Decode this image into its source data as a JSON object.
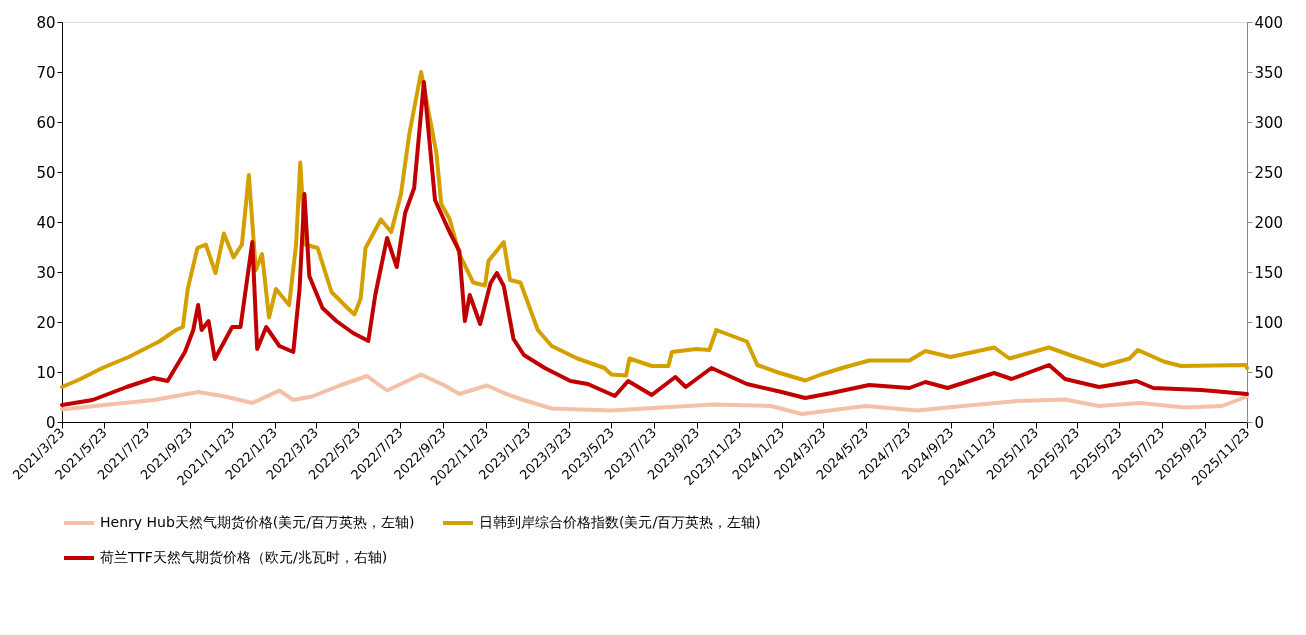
{
  "chart_data": {
    "type": "line",
    "legend": "bottom",
    "line_style": "solid",
    "xlim": [
      "2021-03-23",
      "2025-11-23"
    ],
    "xticks": [
      {
        "value": "2021-03-23",
        "label": "2021/3/23"
      },
      {
        "value": "2021-05-23",
        "label": "2021/5/23"
      },
      {
        "value": "2021-07-23",
        "label": "2021/7/23"
      },
      {
        "value": "2021-09-23",
        "label": "2021/9/23"
      },
      {
        "value": "2021-11-23",
        "label": "2021/11/23"
      },
      {
        "value": "2022-01-23",
        "label": "2022/1/23"
      },
      {
        "value": "2022-03-23",
        "label": "2022/3/23"
      },
      {
        "value": "2022-05-23",
        "label": "2022/5/23"
      },
      {
        "value": "2022-07-23",
        "label": "2022/7/23"
      },
      {
        "value": "2022-09-23",
        "label": "2022/9/23"
      },
      {
        "value": "2022-11-23",
        "label": "2022/11/23"
      },
      {
        "value": "2023-01-23",
        "label": "2023/1/23"
      },
      {
        "value": "2023-03-23",
        "label": "2023/3/23"
      },
      {
        "value": "2023-05-23",
        "label": "2023/5/23"
      },
      {
        "value": "2023-07-23",
        "label": "2023/7/23"
      },
      {
        "value": "2023-09-23",
        "label": "2023/9/23"
      },
      {
        "value": "2023-11-23",
        "label": "2023/11/23"
      },
      {
        "value": "2024-01-23",
        "label": "2024/1/23"
      },
      {
        "value": "2024-03-23",
        "label": "2024/3/23"
      },
      {
        "value": "2024-05-23",
        "label": "2024/5/23"
      },
      {
        "value": "2024-07-23",
        "label": "2024/7/23"
      },
      {
        "value": "2024-09-23",
        "label": "2024/9/23"
      },
      {
        "value": "2024-11-23",
        "label": "2024/11/23"
      },
      {
        "value": "2025-01-23",
        "label": "2025/1/23"
      },
      {
        "value": "2025-03-23",
        "label": "2025/3/23"
      },
      {
        "value": "2025-05-23",
        "label": "2025/5/23"
      },
      {
        "value": "2025-07-23",
        "label": "2025/7/23"
      },
      {
        "value": "2025-09-23",
        "label": "2025/9/23"
      },
      {
        "value": "2025-11-23",
        "label": "2025/11/23"
      }
    ],
    "ylim": [
      0,
      80
    ],
    "yticks": [
      0,
      10,
      20,
      30,
      40,
      50,
      60,
      70,
      80
    ],
    "y2lim": [
      0,
      400
    ],
    "y2ticks": [
      0,
      50,
      100,
      150,
      200,
      250,
      300,
      350,
      400
    ],
    "series": [
      {
        "name": "Henry Hub天然气期货价格(美元/百万英热，左轴)",
        "color": "#f4c0a8",
        "x": [
          "2021-03-23",
          "2021-05-30",
          "2021-08-02",
          "2021-10-05",
          "2021-11-13",
          "2021-12-22",
          "2022-01-30",
          "2022-02-19",
          "2022-03-18",
          "2022-04-27",
          "2022-06-05",
          "2022-07-04",
          "2022-08-22",
          "2022-09-25",
          "2022-10-16",
          "2022-11-25",
          "2022-12-19",
          "2023-01-12",
          "2023-02-26",
          "2023-05-23",
          "2023-10-16",
          "2024-01-08",
          "2024-02-21",
          "2024-05-23",
          "2024-08-05",
          "2024-10-10",
          "2024-12-28",
          "2025-03-06",
          "2025-04-24",
          "2025-06-22",
          "2025-08-25",
          "2025-10-18",
          "2025-11-23"
        ],
        "values": [
          2.5,
          3.5,
          4.4,
          6.0,
          5.1,
          3.8,
          6.3,
          4.4,
          5.1,
          7.3,
          9.2,
          6.3,
          9.5,
          7.3,
          5.6,
          7.3,
          5.8,
          4.6,
          2.7,
          2.3,
          3.5,
          3.2,
          1.6,
          3.2,
          2.3,
          3.2,
          4.2,
          4.5,
          3.2,
          3.8,
          2.9,
          3.2,
          5.1
        ]
      },
      {
        "name": "日韩到岸综合价格指数(美元/百万英热，左轴)",
        "color": "#d4a000",
        "x": [
          "2021-03-23",
          "2021-04-17",
          "2021-05-20",
          "2021-06-27",
          "2021-08-10",
          "2021-09-03",
          "2021-09-13",
          "2021-09-20",
          "2021-10-04",
          "2021-10-16",
          "2021-10-30",
          "2021-11-11",
          "2021-11-25",
          "2021-12-07",
          "2021-12-17",
          "2021-12-27",
          "2022-01-05",
          "2022-01-15",
          "2022-01-25",
          "2022-02-13",
          "2022-02-23",
          "2022-03-01",
          "2022-03-08",
          "2022-03-26",
          "2022-04-15",
          "2022-05-08",
          "2022-05-18",
          "2022-05-27",
          "2022-06-03",
          "2022-06-25",
          "2022-07-10",
          "2022-07-24",
          "2022-08-05",
          "2022-08-22",
          "2022-09-13",
          "2022-09-20",
          "2022-10-02",
          "2022-10-16",
          "2022-11-05",
          "2022-11-22",
          "2022-11-27",
          "2022-12-19",
          "2022-12-28",
          "2023-01-12",
          "2023-02-06",
          "2023-02-26",
          "2023-04-04",
          "2023-05-13",
          "2023-05-23",
          "2023-06-13",
          "2023-06-18",
          "2023-07-20",
          "2023-08-13",
          "2023-08-18",
          "2023-09-22",
          "2023-10-11",
          "2023-10-21",
          "2023-12-04",
          "2023-12-19",
          "2024-01-18",
          "2024-02-26",
          "2024-03-20",
          "2024-04-19",
          "2024-05-28",
          "2024-07-25",
          "2024-08-17",
          "2024-09-22",
          "2024-11-24",
          "2024-12-16",
          "2025-02-11",
          "2025-03-15",
          "2025-04-29",
          "2025-06-07",
          "2025-06-19",
          "2025-07-26",
          "2025-08-20",
          "2025-11-21",
          "2025-11-23"
        ],
        "values": [
          7.0,
          8.5,
          10.8,
          13,
          16.1,
          18.4,
          19,
          26.6,
          34.8,
          35.5,
          29.8,
          37.7,
          32.9,
          35.5,
          49.4,
          30.4,
          33.6,
          20.9,
          26.6,
          23.4,
          35.5,
          51.9,
          35.5,
          34.8,
          26,
          22.8,
          21.5,
          24.7,
          34.8,
          40.5,
          38,
          45.6,
          57.6,
          70,
          53.8,
          43.6,
          40.6,
          33.6,
          27.9,
          27.3,
          32.2,
          36,
          28.4,
          27.9,
          18.4,
          15.2,
          12.7,
          10.8,
          9.5,
          9.3,
          12.7,
          11.2,
          11.2,
          14,
          14.6,
          14.4,
          18.4,
          16.1,
          11.4,
          9.9,
          8.3,
          9.5,
          10.8,
          12.3,
          12.3,
          14.2,
          13,
          14.9,
          12.7,
          14.9,
          13.3,
          11.2,
          12.7,
          14.4,
          12.1,
          11.2,
          11.4,
          10.8
        ]
      },
      {
        "name": "荷兰TTF天然气期货价格（欧元/兆瓦时，右轴)",
        "color": "#c00000",
        "axis": "y2",
        "x": [
          "2021-03-23",
          "2021-05-06",
          "2021-06-24",
          "2021-08-02",
          "2021-08-22",
          "2021-09-16",
          "2021-09-28",
          "2021-10-05",
          "2021-10-10",
          "2021-10-20",
          "2021-10-29",
          "2021-11-23",
          "2021-12-05",
          "2021-12-22",
          "2021-12-29",
          "2022-01-11",
          "2022-01-30",
          "2022-02-19",
          "2022-02-28",
          "2022-03-07",
          "2022-03-14",
          "2022-04-02",
          "2022-04-22",
          "2022-05-16",
          "2022-06-07",
          "2022-06-17",
          "2022-07-04",
          "2022-07-18",
          "2022-07-30",
          "2022-08-12",
          "2022-08-26",
          "2022-09-11",
          "2022-10-02",
          "2022-10-16",
          "2022-10-24",
          "2022-10-31",
          "2022-11-15",
          "2022-11-30",
          "2022-12-09",
          "2022-12-19",
          "2023-01-02",
          "2023-01-17",
          "2023-02-16",
          "2023-03-25",
          "2023-04-19",
          "2023-05-28",
          "2023-06-16",
          "2023-07-20",
          "2023-08-23",
          "2023-09-07",
          "2023-10-14",
          "2023-12-04",
          "2024-01-23",
          "2024-02-26",
          "2024-04-04",
          "2024-05-28",
          "2024-07-25",
          "2024-08-17",
          "2024-09-18",
          "2024-11-24",
          "2024-12-19",
          "2025-02-11",
          "2025-03-06",
          "2025-04-24",
          "2025-06-17",
          "2025-07-11",
          "2025-09-18",
          "2025-11-23"
        ],
        "values": [
          17,
          22,
          35,
          44,
          41,
          70,
          92,
          117,
          92,
          101,
          63,
          95,
          95,
          180,
          73,
          95,
          76,
          70,
          133,
          228,
          146,
          114,
          101,
          89,
          81,
          127,
          184,
          155,
          209,
          234,
          340,
          222,
          190,
          171,
          101,
          127,
          98,
          139,
          149,
          136,
          83,
          67,
          54,
          41,
          38,
          26,
          41,
          27,
          45,
          35,
          54,
          38,
          30,
          24,
          29,
          37,
          34,
          40,
          34,
          49,
          43,
          57,
          43,
          35,
          41,
          34,
          32,
          28
        ]
      }
    ]
  }
}
